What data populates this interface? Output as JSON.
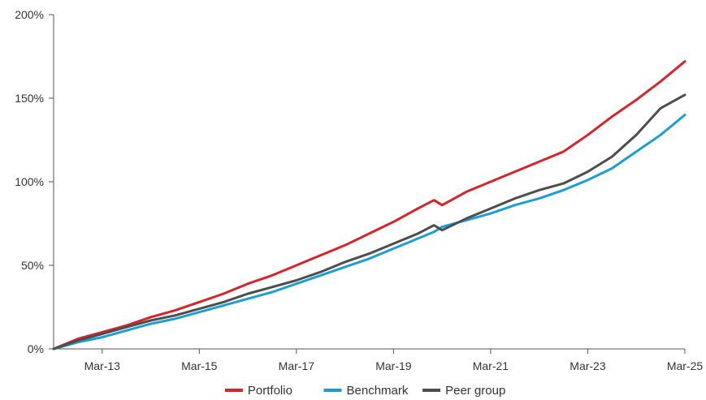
{
  "chart_data": {
    "type": "line",
    "title": "",
    "xlabel": "",
    "ylabel": "",
    "x_tick_labels": [
      "Mar-13",
      "Mar-15",
      "Mar-17",
      "Mar-19",
      "Mar-21",
      "Mar-23",
      "Mar-25"
    ],
    "y_tick_labels": [
      "0%",
      "50%",
      "100%",
      "150%",
      "200%"
    ],
    "ylim": [
      0,
      200
    ],
    "xlim": [
      "2012-03",
      "2025-03"
    ],
    "grid": false,
    "legend_position": "bottom",
    "x": [
      "2012-03",
      "2012-09",
      "2013-03",
      "2013-09",
      "2014-03",
      "2014-09",
      "2015-03",
      "2015-09",
      "2016-03",
      "2016-09",
      "2017-03",
      "2017-09",
      "2018-03",
      "2018-09",
      "2019-03",
      "2019-09",
      "2020-01",
      "2020-03",
      "2020-09",
      "2021-03",
      "2021-09",
      "2022-03",
      "2022-09",
      "2023-03",
      "2023-09",
      "2024-03",
      "2024-09",
      "2025-03"
    ],
    "series": [
      {
        "name": "Portfolio",
        "color": "#d7242a",
        "values": [
          0,
          6,
          10,
          14,
          19,
          23,
          28,
          33,
          39,
          44,
          50,
          56,
          62,
          69,
          76,
          84,
          89,
          86,
          94,
          100,
          106,
          112,
          118,
          128,
          139,
          149,
          160,
          172
        ]
      },
      {
        "name": "Benchmark",
        "color": "#1c9fd0",
        "values": [
          0,
          4,
          7,
          11,
          15,
          18,
          22,
          26,
          30,
          34,
          39,
          44,
          49,
          54,
          60,
          66,
          70,
          73,
          77,
          81,
          86,
          90,
          95,
          101,
          108,
          118,
          128,
          140
        ]
      },
      {
        "name": "Peer group",
        "color": "#4d4d4d",
        "values": [
          0,
          5,
          9,
          13,
          17,
          20,
          24,
          28,
          33,
          37,
          41,
          46,
          52,
          57,
          63,
          69,
          74,
          71,
          78,
          84,
          90,
          95,
          99,
          106,
          115,
          128,
          144,
          152
        ]
      }
    ]
  }
}
